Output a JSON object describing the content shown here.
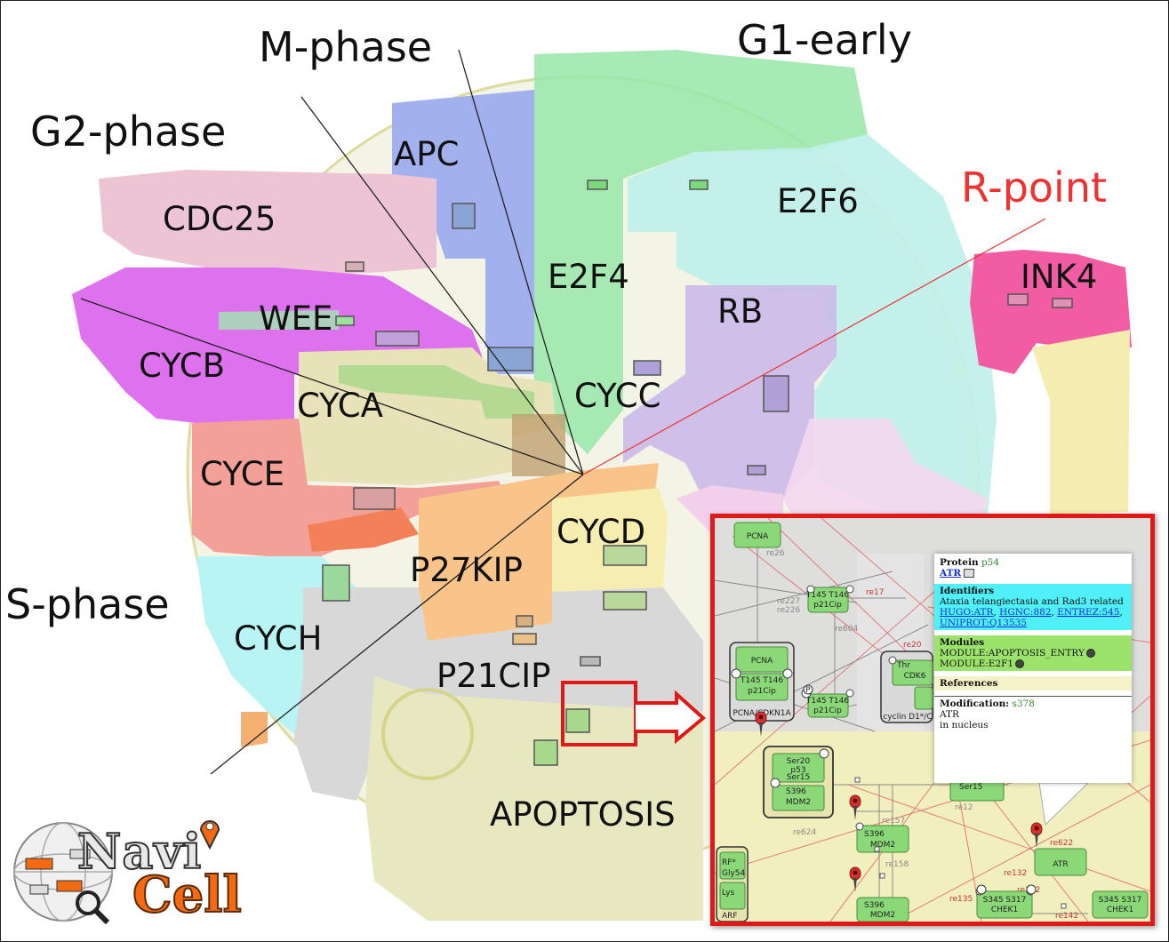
{
  "phases": {
    "m_phase": "M-phase",
    "g1_early": "G1-early",
    "g2_phase": "G2-phase",
    "r_point": "R-point",
    "s_phase": "S-phase"
  },
  "modules": {
    "apc": "APC",
    "e2f6": "E2F6",
    "cdc25": "CDC25",
    "e2f4": "E2F4",
    "ink4": "INK4",
    "rb": "RB",
    "wee": "WEE",
    "cycb": "CYCB",
    "cyca": "CYCA",
    "cycc": "CYCC",
    "cyce": "CYCE",
    "cycd": "CYCD",
    "p27kip": "P27KIP",
    "cych": "CYCH",
    "p21cip": "P21CIP",
    "apoptosis": "APOPTOSIS"
  },
  "inset": {
    "nodes": {
      "pcna_top": "PCNA",
      "pcna_complex": "PCNA",
      "p21cip_in_complex": "p21Cip",
      "t145_in_complex": "T145 T146",
      "complex_label": "PCNA/CDKN1A",
      "p21cip_top": "p21Cip",
      "t145_top": "T145 T146",
      "p21cip_mid": "p21Cip",
      "t145_mid": "T145 T146",
      "cdk6": "CDK6",
      "cdk6_thr": "Thr",
      "cyclin_complex_label": "cyclin D1*/C",
      "p53_ser20": "Ser20",
      "p53_label": "p53",
      "p53_ser15": "Ser15",
      "mdm2_in_complex": "MDM2",
      "mdm2_s396": "S396",
      "mdm2_a": "MDM2",
      "mdm2_a_s396": "S396",
      "mdm2_b": "MDM2",
      "mdm2_b_s396": "S396",
      "atr": "ATR",
      "chek1_a": "CHEK1",
      "chek1_a_sites": "S345 S317",
      "chek1_b": "CHEK1",
      "chek1_b_sites": "S345 S317",
      "arf": "ARF",
      "arf_top": "RF*",
      "arf_mid": "Gly54",
      "arf_lys": "Lys",
      "p53_right": "Ser15"
    },
    "reactions": {
      "re26": "re26",
      "re227": "re227",
      "re226": "re226",
      "re604": "re604",
      "re1": "re17",
      "re20": "re20",
      "re157": "re157",
      "re624": "re624",
      "re158": "re158",
      "re622": "re622",
      "re132": "re132",
      "re142a": "re142",
      "re135": "re135",
      "re142b": "re142",
      "re12": "re12"
    },
    "popup": {
      "title_prefix": "Protein",
      "title_value": "p54",
      "link": "ATR",
      "identifiers_hdr": "Identifiers",
      "identifiers_desc": "Ataxia telangiectasia and Rad3 related",
      "id_hugo": "HUGO:ATR",
      "id_hgnc": "HGNC:882",
      "id_entrez": "ENTREZ:545",
      "id_uniprot": "UNIPROT:Q13535",
      "modules_hdr": "Modules",
      "module_1": "MODULE:APOPTOSIS_ENTRY",
      "module_2": "MODULE:E2F1",
      "references_hdr": "References",
      "modification_prefix": "Modification:",
      "modification_value": "s378",
      "modification_line1": "ATR",
      "modification_line2": "in nucleus"
    }
  },
  "logo": {
    "navi": "Navi",
    "cell": "Cell"
  },
  "colors": {
    "highlight_red": "#e01818",
    "rpoint_red": "#e33333",
    "popup_cyan": "#4ff0f8",
    "popup_green": "#9be36a",
    "logo_orange": "#f36a12"
  }
}
